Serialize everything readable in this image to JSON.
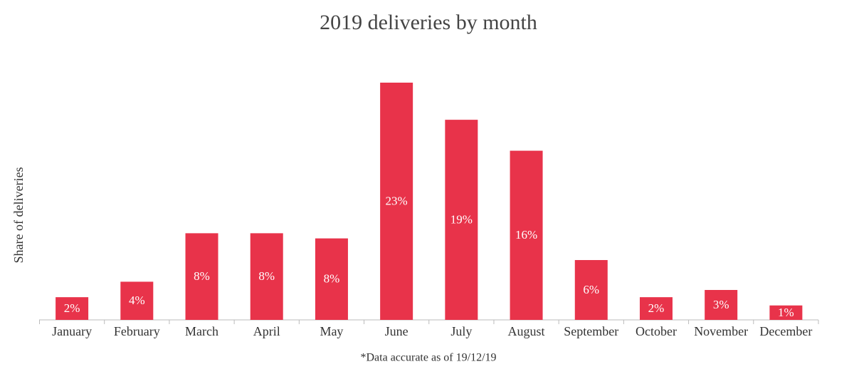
{
  "chart_data": {
    "type": "bar",
    "title": "2019 deliveries by month",
    "y_label": "Share of deliveries",
    "note": "*Data accurate as of 19/12/19",
    "categories": [
      "January",
      "February",
      "March",
      "April",
      "May",
      "June",
      "July",
      "August",
      "September",
      "October",
      "November",
      "December"
    ],
    "values": [
      2.2,
      3.7,
      8.4,
      8.4,
      7.9,
      23,
      19.4,
      16.4,
      5.8,
      2.2,
      2.9,
      1.4
    ],
    "value_labels": [
      "2%",
      "4%",
      "8%",
      "8%",
      "8%",
      "23%",
      "19%",
      "16%",
      "6%",
      "2%",
      "3%",
      "1%"
    ],
    "color": "#e8334a"
  }
}
